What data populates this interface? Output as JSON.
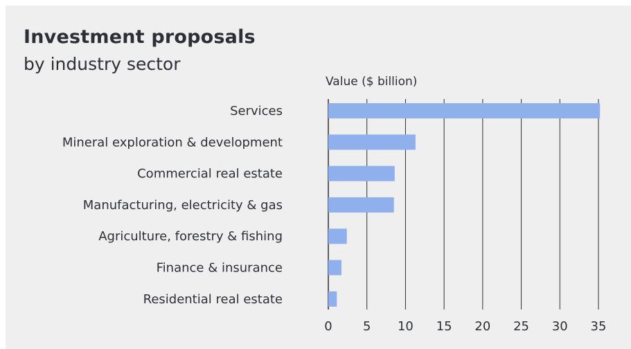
{
  "chart_data": {
    "type": "bar",
    "orientation": "horizontal",
    "title": "Investment proposals",
    "subtitle": "by industry sector",
    "xlabel": "Value ($ billion)",
    "ylabel": "",
    "xlim": [
      0,
      35
    ],
    "xticks": [
      0,
      5,
      10,
      15,
      20,
      25,
      30,
      35
    ],
    "grid": true,
    "bar_color": "#8fb0ec",
    "categories": [
      "Services",
      "Mineral exploration & development",
      "Commercial real estate",
      "Manufacturing, electricity & gas",
      "Agriculture, forestry & fishing",
      "Finance & insurance",
      "Residential real estate"
    ],
    "values": [
      35.2,
      11.3,
      8.6,
      8.5,
      2.4,
      1.7,
      1.1
    ]
  }
}
